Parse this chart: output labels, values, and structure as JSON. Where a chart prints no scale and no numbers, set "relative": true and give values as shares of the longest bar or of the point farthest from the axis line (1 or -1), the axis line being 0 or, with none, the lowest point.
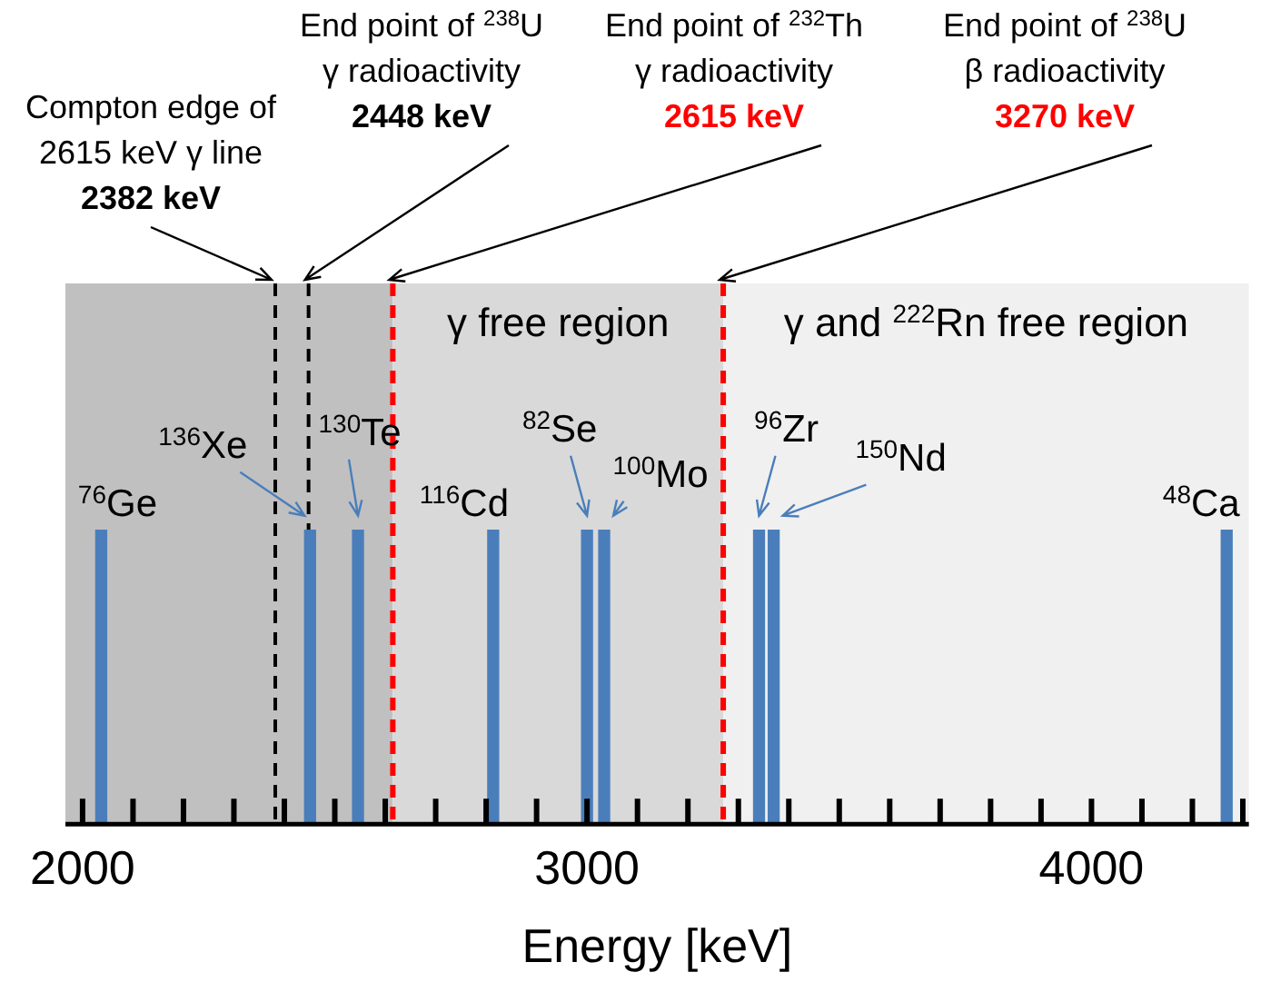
{
  "chart_data": {
    "type": "bar",
    "relative": true,
    "xlabel": "Energy [keV]",
    "x": [
      2037,
      2451,
      2546,
      2814,
      3000,
      3034,
      3341,
      3370,
      4268
    ],
    "values": [
      1,
      1,
      1,
      1,
      1,
      1,
      1,
      1,
      1
    ],
    "color": "#4a7ebb",
    "xlim": [
      1966,
      4312
    ],
    "xticks": [
      2000,
      {
        "value": 2100,
        "label": null
      },
      {
        "value": 2200,
        "label": null
      },
      {
        "value": 2300,
        "label": null
      },
      {
        "value": 2400,
        "label": null
      },
      {
        "value": 2500,
        "label": null
      },
      {
        "value": 2600,
        "label": null
      },
      {
        "value": 2700,
        "label": null
      },
      {
        "value": 2800,
        "label": null
      },
      {
        "value": 2900,
        "label": null
      },
      3000,
      {
        "value": 3100,
        "label": null
      },
      {
        "value": 3200,
        "label": null
      },
      {
        "value": 3300,
        "label": null
      },
      {
        "value": 3400,
        "label": null
      },
      {
        "value": 3500,
        "label": null
      },
      {
        "value": 3600,
        "label": null
      },
      {
        "value": 3700,
        "label": null
      },
      {
        "value": 3800,
        "label": null
      },
      {
        "value": 3900,
        "label": null
      },
      4000,
      {
        "value": 4100,
        "label": null
      },
      {
        "value": 4200,
        "label": null
      },
      {
        "value": 4300,
        "label": null
      }
    ],
    "grid": false,
    "legend": false,
    "bands": [
      {
        "axis": "x",
        "from": 1966,
        "to": 2615,
        "color": "#c0c0c0"
      },
      {
        "axis": "x",
        "from": 2615,
        "to": 3270,
        "label": "γ free region",
        "color": "#d9d9d9"
      },
      {
        "axis": "x",
        "from": 3270,
        "to": 4312,
        "label": "γ and $^{222}$Rn free region",
        "color": "#f0f0f0"
      }
    ],
    "ref_lines": [
      {
        "axis": "x",
        "value": 2382,
        "label": "Compton edge of\n2615 keV γ line\n2382 keV",
        "color": "#000000",
        "line_style": "dashed"
      },
      {
        "axis": "x",
        "value": 2448,
        "label": "End point of $^{238}$U\nγ radioactivity\n2448 keV",
        "color": "#000000",
        "line_style": "dashed"
      },
      {
        "axis": "x",
        "value": 2615,
        "label": "End point of $^{232}$Th\nγ radioactivity\n2615 keV",
        "color": "#ff0000",
        "line_style": "dashed"
      },
      {
        "axis": "x",
        "value": 3270,
        "label": "End point of $^{238}$U\nβ radioactivity\n3270 keV",
        "color": "#ff0000",
        "line_style": "dashed"
      }
    ],
    "annotations": [
      {
        "text": "$^{76}$Ge",
        "x": 2037,
        "y": 1
      },
      {
        "text": "$^{136}$Xe",
        "x": 2451,
        "y": 1
      },
      {
        "text": "$^{130}$Te",
        "x": 2546,
        "y": 1
      },
      {
        "text": "$^{116}$Cd",
        "x": 2814,
        "y": 1
      },
      {
        "text": "$^{82}$Se",
        "x": 3000,
        "y": 1
      },
      {
        "text": "$^{100}$Mo",
        "x": 3034,
        "y": 1
      },
      {
        "text": "$^{96}$Zr",
        "x": 3341,
        "y": 1
      },
      {
        "text": "$^{150}$Nd",
        "x": 3370,
        "y": 1
      },
      {
        "text": "$^{48}$Ca",
        "x": 4268,
        "y": 1
      }
    ]
  }
}
